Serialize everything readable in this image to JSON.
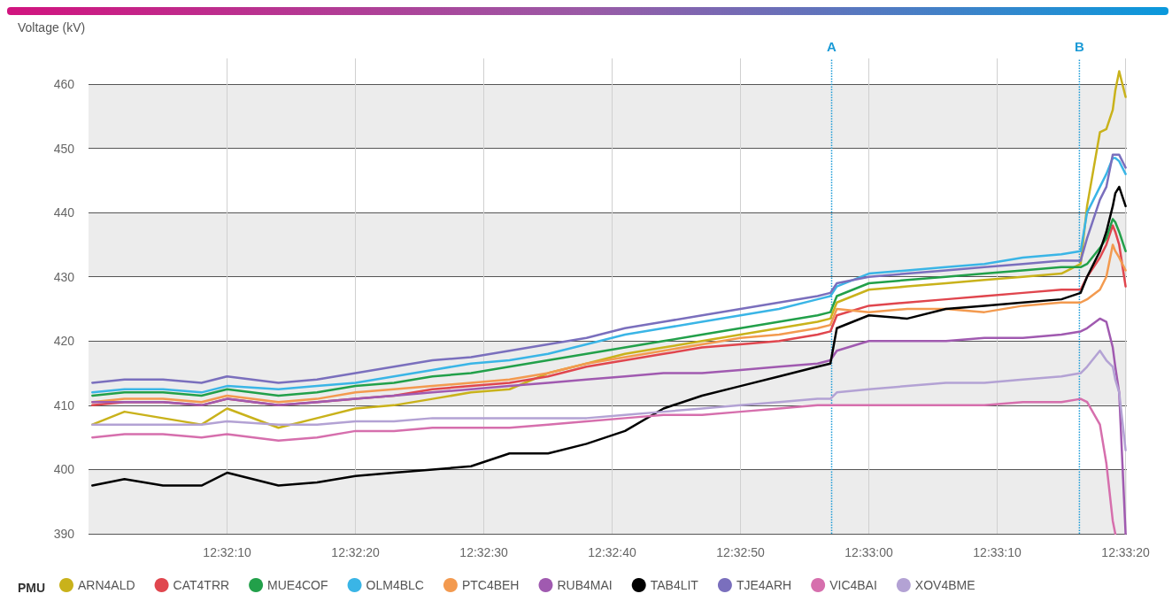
{
  "chart_data": {
    "type": "line",
    "ylabel": "Voltage (kV)",
    "legend_title": "PMU",
    "legend": "bottom",
    "grid": true,
    "marker": "none",
    "line_style": "solid",
    "ylim": [
      390,
      464
    ],
    "yticks": [
      390,
      400,
      410,
      420,
      430,
      440,
      450,
      460
    ],
    "xlim": [
      12.533111,
      12.555583
    ],
    "xticks": [
      {
        "value": 12.536111,
        "label": "12:32:10"
      },
      {
        "value": 12.538889,
        "label": "12:32:20"
      },
      {
        "value": 12.541667,
        "label": "12:32:30"
      },
      {
        "value": 12.544444,
        "label": "12:32:40"
      },
      {
        "value": 12.547222,
        "label": "12:32:50"
      },
      {
        "value": 12.55,
        "label": "12:33:00"
      },
      {
        "value": 12.552778,
        "label": "12:33:10"
      },
      {
        "value": 12.555556,
        "label": "12:33:20"
      }
    ],
    "x": [
      12.533194,
      12.533889,
      12.534722,
      12.535556,
      12.536111,
      12.537222,
      12.538056,
      12.538889,
      12.539722,
      12.540556,
      12.541389,
      12.542222,
      12.543056,
      12.543889,
      12.544722,
      12.545556,
      12.546389,
      12.547222,
      12.548056,
      12.548889,
      12.549167,
      12.549306,
      12.55,
      12.550833,
      12.551667,
      12.5525,
      12.553333,
      12.554167,
      12.554583,
      12.554722,
      12.555,
      12.555139,
      12.555278,
      12.555333,
      12.555417,
      12.555556
    ],
    "series": [
      {
        "name": "ARN4ALD",
        "color": "#c9b21b",
        "values": [
          407,
          409,
          408,
          407,
          409.5,
          406.5,
          408,
          409.5,
          410,
          411,
          412,
          412.5,
          415,
          416.5,
          418,
          419,
          420,
          421,
          422,
          423,
          423.5,
          426,
          428,
          428.5,
          429,
          429.5,
          430,
          430.5,
          432,
          441,
          452.5,
          453,
          456,
          459,
          462,
          458
        ]
      },
      {
        "name": "CAT4TRR",
        "color": "#e0464e",
        "values": [
          410,
          410.5,
          410.5,
          410,
          411,
          410,
          410.5,
          411,
          411.5,
          412.5,
          413,
          413.5,
          414.5,
          416,
          417,
          418,
          419,
          419.5,
          420,
          421,
          421.5,
          424,
          425.5,
          426,
          426.5,
          427,
          427.5,
          428,
          428,
          430,
          433,
          435,
          438,
          437,
          435,
          428.5
        ]
      },
      {
        "name": "MUE4COF",
        "color": "#22a04a",
        "values": [
          411.5,
          412,
          412,
          411.5,
          412.5,
          411.5,
          412,
          413,
          413.5,
          414.5,
          415,
          416,
          417,
          418,
          419,
          420,
          421,
          422,
          423,
          424,
          424.5,
          427,
          429,
          429.5,
          430,
          430.5,
          431,
          431.5,
          431.5,
          432,
          434.5,
          436,
          439,
          438.5,
          437,
          434
        ]
      },
      {
        "name": "OLM4BLC",
        "color": "#3ab5e6",
        "values": [
          412,
          412.5,
          412.5,
          412,
          413,
          412.5,
          413,
          413.5,
          414.5,
          415.5,
          416.5,
          417,
          418,
          419.5,
          421,
          422,
          423,
          424,
          425,
          426.5,
          427,
          428.5,
          430.5,
          431,
          431.5,
          432,
          433,
          433.5,
          434,
          440,
          444,
          446,
          448.5,
          448.5,
          448,
          446
        ]
      },
      {
        "name": "PTC4BEH",
        "color": "#f39a4f",
        "values": [
          410.5,
          411,
          411,
          410.5,
          411.5,
          410.5,
          411,
          412,
          412.5,
          413,
          413.5,
          414,
          415,
          416.5,
          417.5,
          418.5,
          419.5,
          420.5,
          421,
          422,
          422.5,
          425,
          424.5,
          425,
          425,
          424.5,
          425.5,
          426,
          426,
          426.5,
          428,
          430,
          435,
          434,
          433,
          431
        ]
      },
      {
        "name": "RUB4MAI",
        "color": "#a05ab0",
        "values": [
          410.5,
          410.5,
          410.5,
          410,
          411,
          410,
          410.5,
          411,
          411.5,
          412,
          412.5,
          413,
          413.5,
          414,
          414.5,
          415,
          415,
          415.5,
          416,
          416.5,
          417,
          418.5,
          420,
          420,
          420,
          420.5,
          420.5,
          421,
          421.5,
          422,
          423.5,
          423,
          419,
          416,
          412,
          390
        ]
      },
      {
        "name": "TAB4LIT",
        "color": "#000000",
        "values": [
          397.5,
          398.5,
          397.5,
          397.5,
          399.5,
          397.5,
          398,
          399,
          399.5,
          400,
          400.5,
          402.5,
          402.5,
          404,
          406,
          409.5,
          411.5,
          413,
          414.5,
          416,
          416.5,
          422,
          424,
          423.5,
          425,
          425.5,
          426,
          426.5,
          427.5,
          430,
          434,
          437,
          441,
          443,
          444,
          441
        ]
      },
      {
        "name": "TJE4ARH",
        "color": "#7a6fbd",
        "values": [
          413.5,
          414,
          414,
          413.5,
          414.5,
          413.5,
          414,
          415,
          416,
          417,
          417.5,
          418.5,
          419.5,
          420.5,
          422,
          423,
          424,
          425,
          426,
          427,
          427.5,
          429,
          430,
          430.5,
          431,
          431.5,
          432,
          432.5,
          432.5,
          436,
          442,
          444,
          449,
          449,
          449,
          447
        ]
      },
      {
        "name": "VIC4BAI",
        "color": "#d66fad",
        "values": [
          405,
          405.5,
          405.5,
          405,
          405.5,
          404.5,
          405,
          406,
          406,
          406.5,
          406.5,
          406.5,
          407,
          407.5,
          408,
          408.5,
          408.5,
          409,
          409.5,
          410,
          410,
          410,
          410,
          410,
          410,
          410,
          410.5,
          410.5,
          411,
          410.5,
          407,
          401,
          392,
          390,
          null,
          null
        ]
      },
      {
        "name": "XOV4BME",
        "color": "#b3a2d4",
        "values": [
          407,
          407,
          407,
          407,
          407.5,
          407,
          407,
          407.5,
          407.5,
          408,
          408,
          408,
          408,
          408,
          408.5,
          409,
          409.5,
          410,
          410.5,
          411,
          411,
          412,
          412.5,
          413,
          413.5,
          413.5,
          414,
          414.5,
          415,
          416,
          418.5,
          417,
          416,
          414,
          412,
          403
        ]
      }
    ],
    "ref_lines": [
      {
        "axis": "x",
        "value": 12.549194,
        "label": "A",
        "color": "#1a9ad6",
        "line_style": "dotted"
      },
      {
        "axis": "x",
        "value": 12.554556,
        "label": "B",
        "color": "#1a9ad6",
        "line_style": "dotted"
      }
    ]
  }
}
